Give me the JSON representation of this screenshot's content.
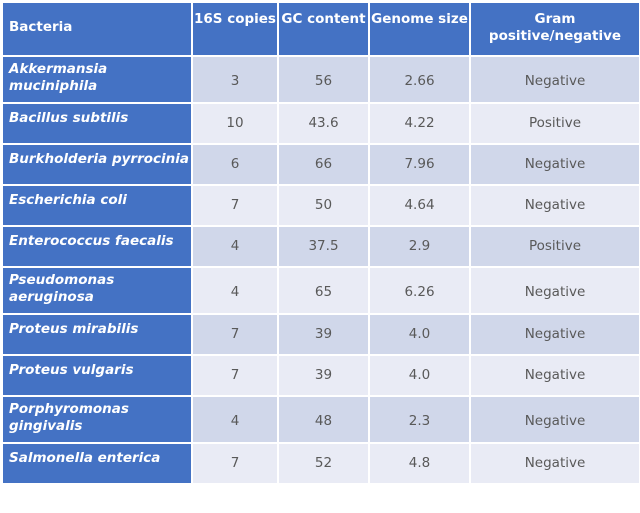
{
  "table": {
    "headers": [
      "Bacteria",
      "16S copies",
      "GC content",
      "Genome size",
      "Gram positive/negative"
    ],
    "rows": [
      {
        "bacteria": "Akkermansia muciniphila",
        "copies": "3",
        "gc": "56",
        "genome": "2.66",
        "gram": "Negative"
      },
      {
        "bacteria": "Bacillus subtilis",
        "copies": "10",
        "gc": "43.6",
        "genome": "4.22",
        "gram": "Positive"
      },
      {
        "bacteria": "Burkholderia pyrrocinia",
        "copies": "6",
        "gc": "66",
        "genome": "7.96",
        "gram": "Negative"
      },
      {
        "bacteria": "Escherichia coli",
        "copies": "7",
        "gc": "50",
        "genome": "4.64",
        "gram": "Negative"
      },
      {
        "bacteria": "Enterococcus faecalis",
        "copies": "4",
        "gc": "37.5",
        "genome": "2.9",
        "gram": "Positive"
      },
      {
        "bacteria": "Pseudomonas aeruginosa",
        "copies": "4",
        "gc": "65",
        "genome": "6.26",
        "gram": "Negative"
      },
      {
        "bacteria": "Proteus mirabilis",
        "copies": "7",
        "gc": "39",
        "genome": "4.0",
        "gram": "Negative"
      },
      {
        "bacteria": "Proteus vulgaris",
        "copies": "7",
        "gc": "39",
        "genome": "4.0",
        "gram": "Negative"
      },
      {
        "bacteria": "Porphyromonas gingivalis",
        "copies": "4",
        "gc": "48",
        "genome": "2.3",
        "gram": "Negative"
      },
      {
        "bacteria": "Salmonella enterica",
        "copies": "7",
        "gc": "52",
        "genome": "4.8",
        "gram": "Negative"
      }
    ]
  },
  "colors": {
    "header_blue": "#4472c4",
    "row_band_dark": "#d0d7ea",
    "row_band_light": "#e9ebf5",
    "cell_text": "#595959"
  }
}
